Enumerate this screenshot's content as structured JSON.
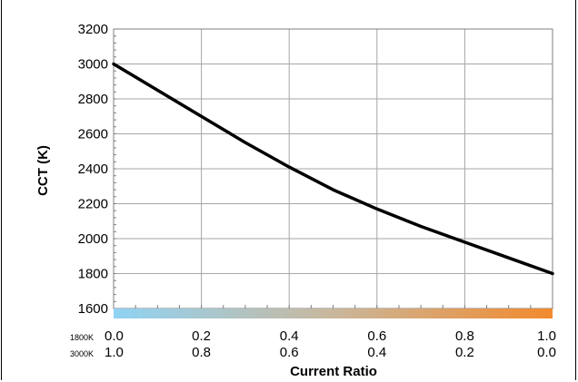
{
  "chart_data": {
    "type": "line",
    "title": "",
    "xlabel": "Current Ratio",
    "ylabel": "CCT (K)",
    "xlim": [
      0.0,
      1.0
    ],
    "ylim": [
      1600,
      3200
    ],
    "grid": true,
    "y_ticks": [
      "1600",
      "1800",
      "2000",
      "2200",
      "2400",
      "2600",
      "2800",
      "3000",
      "3200"
    ],
    "x_axis_rows": [
      {
        "label": "1800K",
        "ticks": [
          "0.0",
          "0.2",
          "0.4",
          "0.6",
          "0.8",
          "1.0"
        ]
      },
      {
        "label": "3000K",
        "ticks": [
          "1.0",
          "0.8",
          "0.6",
          "0.4",
          "0.2",
          "0.0"
        ]
      }
    ],
    "series": [
      {
        "x": [
          0.0,
          0.1,
          0.2,
          0.3,
          0.4,
          0.5,
          0.6,
          0.7,
          0.8,
          0.9,
          1.0
        ],
        "values": [
          3000,
          2850,
          2700,
          2550,
          2410,
          2280,
          2170,
          2070,
          1980,
          1890,
          1800
        ],
        "color": "#000000"
      }
    ],
    "gradient_bar": {
      "colors": [
        "#8fd3f4",
        "#c9b79c",
        "#f28a2e"
      ]
    }
  }
}
